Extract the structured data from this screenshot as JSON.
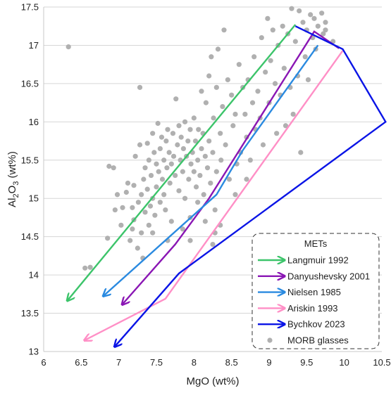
{
  "chart_data": {
    "type": "scatter",
    "title": "",
    "xlabel": "MgO (wt%)",
    "ylabel": {
      "prefix": "Al",
      "sub1": "2",
      "mid": "O",
      "sub2": "3",
      "suffix": " (wt%)"
    },
    "xlim": [
      6,
      10.5
    ],
    "ylim": [
      13,
      17.5
    ],
    "x_ticks": [
      "6",
      "6.5",
      "7",
      "7.5",
      "8",
      "8.5",
      "9",
      "9.5",
      "10",
      "10.5"
    ],
    "y_ticks": [
      "13",
      "13.5",
      "14",
      "14.5",
      "15",
      "15.5",
      "16",
      "16.5",
      "17",
      "17.5"
    ],
    "grid": {
      "horizontal": true,
      "vertical": false
    },
    "legend": {
      "title": "METs",
      "placement": "bottom-right"
    },
    "series": [
      {
        "name": "Langmuir 1992",
        "kind": "arrow-line",
        "color": "#3cc46a",
        "points": [
          [
            9.35,
            17.27
          ],
          [
            6.32,
            13.67
          ]
        ]
      },
      {
        "name": "Danyushevsky 2001",
        "kind": "arrow-line",
        "color": "#8a16b4",
        "points": [
          [
            9.93,
            16.96
          ],
          [
            9.6,
            17.18
          ],
          [
            8.2,
            15.0
          ],
          [
            7.75,
            14.4
          ],
          [
            7.05,
            13.62
          ]
        ]
      },
      {
        "name": "Nielsen 1985",
        "kind": "arrow-line",
        "color": "#2a8ae0",
        "points": [
          [
            9.65,
            17.0
          ],
          [
            8.65,
            15.63
          ],
          [
            8.3,
            15.05
          ],
          [
            6.8,
            13.73
          ]
        ]
      },
      {
        "name": "Ariskin 1993",
        "kind": "arrow-line",
        "color": "#ff8fc6",
        "points": [
          [
            9.98,
            16.93
          ],
          [
            7.62,
            13.69
          ],
          [
            6.55,
            13.15
          ]
        ]
      },
      {
        "name": "Bychkov 2023",
        "kind": "arrow-line",
        "color": "#0a14e6",
        "points": [
          [
            9.35,
            17.25
          ],
          [
            9.98,
            16.95
          ],
          [
            10.55,
            16.0
          ],
          [
            7.8,
            14.02
          ],
          [
            6.95,
            13.07
          ]
        ]
      },
      {
        "name": "MORB glasses",
        "kind": "scatter",
        "color": "#b0b0b0",
        "points": [
          [
            6.33,
            16.98
          ],
          [
            6.55,
            14.09
          ],
          [
            6.62,
            14.1
          ],
          [
            6.85,
            14.48
          ],
          [
            6.87,
            15.42
          ],
          [
            6.93,
            15.4
          ],
          [
            6.95,
            14.85
          ],
          [
            6.98,
            15.05
          ],
          [
            7.03,
            14.65
          ],
          [
            7.05,
            14.88
          ],
          [
            7.1,
            15.08
          ],
          [
            7.12,
            15.2
          ],
          [
            7.15,
            14.45
          ],
          [
            7.18,
            14.6
          ],
          [
            7.18,
            14.88
          ],
          [
            7.2,
            15.17
          ],
          [
            7.2,
            14.72
          ],
          [
            7.22,
            15.55
          ],
          [
            7.25,
            14.35
          ],
          [
            7.26,
            14.95
          ],
          [
            7.28,
            15.7
          ],
          [
            7.28,
            16.45
          ],
          [
            7.3,
            14.55
          ],
          [
            7.3,
            15.05
          ],
          [
            7.32,
            14.22
          ],
          [
            7.33,
            15.25
          ],
          [
            7.35,
            14.82
          ],
          [
            7.35,
            15.4
          ],
          [
            7.38,
            15.12
          ],
          [
            7.38,
            15.72
          ],
          [
            7.4,
            14.65
          ],
          [
            7.4,
            15.5
          ],
          [
            7.42,
            14.9
          ],
          [
            7.43,
            15.3
          ],
          [
            7.45,
            15.85
          ],
          [
            7.45,
            15.0
          ],
          [
            7.47,
            15.6
          ],
          [
            7.48,
            14.78
          ],
          [
            7.5,
            15.45
          ],
          [
            7.5,
            15.15
          ],
          [
            7.52,
            15.98
          ],
          [
            7.53,
            15.35
          ],
          [
            7.55,
            14.95
          ],
          [
            7.55,
            15.65
          ],
          [
            7.57,
            15.8
          ],
          [
            7.58,
            15.25
          ],
          [
            7.6,
            15.5
          ],
          [
            7.6,
            15.05
          ],
          [
            7.62,
            14.85
          ],
          [
            7.63,
            15.75
          ],
          [
            7.64,
            15.4
          ],
          [
            7.65,
            15.9
          ],
          [
            7.67,
            15.6
          ],
          [
            7.68,
            15.2
          ],
          [
            7.7,
            14.7
          ],
          [
            7.7,
            15.45
          ],
          [
            7.72,
            15.85
          ],
          [
            7.73,
            15.55
          ],
          [
            7.75,
            15.3
          ],
          [
            7.76,
            16.3
          ],
          [
            7.78,
            15.7
          ],
          [
            7.8,
            15.1
          ],
          [
            7.8,
            15.95
          ],
          [
            7.82,
            15.5
          ],
          [
            7.83,
            15.8
          ],
          [
            7.85,
            15.35
          ],
          [
            7.86,
            15.65
          ],
          [
            7.88,
            16.0
          ],
          [
            7.88,
            15.0
          ],
          [
            7.9,
            15.55
          ],
          [
            7.92,
            15.75
          ],
          [
            7.93,
            15.25
          ],
          [
            7.95,
            15.9
          ],
          [
            7.96,
            15.45
          ],
          [
            7.98,
            15.6
          ],
          [
            8.0,
            16.05
          ],
          [
            8.0,
            15.35
          ],
          [
            8.02,
            15.75
          ],
          [
            8.03,
            15.15
          ],
          [
            8.05,
            15.5
          ],
          [
            8.06,
            15.9
          ],
          [
            8.08,
            15.3
          ],
          [
            8.1,
            15.65
          ],
          [
            8.1,
            16.4
          ],
          [
            8.12,
            15.85
          ],
          [
            8.13,
            15.05
          ],
          [
            8.15,
            15.55
          ],
          [
            8.16,
            16.25
          ],
          [
            8.18,
            15.4
          ],
          [
            8.2,
            15.75
          ],
          [
            8.2,
            16.6
          ],
          [
            8.22,
            15.2
          ],
          [
            8.23,
            16.85
          ],
          [
            8.25,
            15.6
          ],
          [
            8.26,
            16.05
          ],
          [
            8.28,
            14.55
          ],
          [
            8.28,
            14.85
          ],
          [
            8.3,
            15.35
          ],
          [
            8.3,
            16.45
          ],
          [
            8.32,
            16.95
          ],
          [
            8.35,
            15.85
          ],
          [
            8.36,
            15.5
          ],
          [
            8.38,
            16.2
          ],
          [
            8.4,
            17.2
          ],
          [
            8.42,
            15.7
          ],
          [
            8.45,
            16.55
          ],
          [
            8.47,
            15.25
          ],
          [
            8.5,
            16.35
          ],
          [
            8.52,
            15.95
          ],
          [
            8.55,
            16.1
          ],
          [
            8.57,
            15.45
          ],
          [
            8.6,
            16.75
          ],
          [
            8.62,
            15.6
          ],
          [
            8.65,
            16.45
          ],
          [
            8.68,
            16.1
          ],
          [
            8.7,
            15.8
          ],
          [
            8.72,
            16.55
          ],
          [
            8.75,
            15.5
          ],
          [
            8.78,
            16.25
          ],
          [
            8.8,
            16.85
          ],
          [
            8.82,
            15.9
          ],
          [
            8.85,
            16.4
          ],
          [
            8.88,
            16.05
          ],
          [
            8.9,
            17.1
          ],
          [
            8.92,
            15.7
          ],
          [
            8.95,
            16.65
          ],
          [
            8.98,
            17.35
          ],
          [
            9.0,
            16.25
          ],
          [
            9.02,
            16.8
          ],
          [
            9.05,
            17.2
          ],
          [
            9.08,
            16.5
          ],
          [
            9.1,
            15.85
          ],
          [
            9.12,
            17.0
          ],
          [
            9.15,
            16.35
          ],
          [
            9.18,
            17.25
          ],
          [
            9.2,
            16.7
          ],
          [
            9.22,
            15.95
          ],
          [
            9.25,
            17.15
          ],
          [
            9.28,
            16.45
          ],
          [
            9.3,
            17.48
          ],
          [
            9.32,
            16.1
          ],
          [
            9.35,
            17.05
          ],
          [
            9.38,
            16.6
          ],
          [
            9.4,
            17.45
          ],
          [
            9.42,
            15.6
          ],
          [
            9.45,
            17.3
          ],
          [
            9.48,
            16.85
          ],
          [
            9.5,
            17.2
          ],
          [
            9.52,
            16.55
          ],
          [
            9.55,
            17.4
          ],
          [
            9.58,
            17.1
          ],
          [
            9.6,
            17.35
          ],
          [
            9.62,
            16.95
          ],
          [
            9.65,
            17.25
          ],
          [
            9.7,
            17.42
          ],
          [
            9.72,
            17.15
          ],
          [
            9.75,
            17.3
          ],
          [
            9.85,
            17.05
          ],
          [
            9.75,
            17.2
          ],
          [
            8.05,
            14.95
          ],
          [
            8.15,
            14.7
          ],
          [
            8.35,
            14.65
          ],
          [
            8.25,
            14.4
          ],
          [
            7.95,
            14.75
          ],
          [
            7.85,
            14.6
          ],
          [
            7.65,
            14.45
          ],
          [
            7.45,
            14.55
          ],
          [
            7.95,
            14.45
          ],
          [
            8.55,
            15.05
          ],
          [
            8.7,
            15.25
          ]
        ]
      }
    ]
  }
}
